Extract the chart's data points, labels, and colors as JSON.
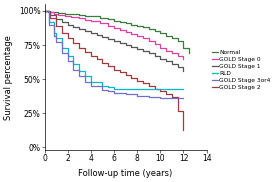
{
  "title": "",
  "xlabel": "Follow-up time (years)",
  "ylabel": "Survival percentage",
  "xlim": [
    0,
    14
  ],
  "ylim": [
    -2,
    105
  ],
  "yticks": [
    0,
    25,
    50,
    75,
    100
  ],
  "ytick_labels": [
    "0%",
    "25%",
    "50%",
    "75%",
    "100%"
  ],
  "xticks": [
    0,
    2,
    4,
    6,
    8,
    10,
    12,
    14
  ],
  "background_color": "#ffffff",
  "series": [
    {
      "label": "Normal",
      "color": "#3a7d3a",
      "lw": 0.9,
      "x": [
        0,
        0.3,
        0.8,
        1.2,
        1.8,
        2.3,
        3.0,
        3.5,
        4.0,
        4.8,
        5.5,
        6.0,
        6.5,
        7.0,
        7.5,
        8.0,
        8.5,
        9.0,
        9.5,
        10.0,
        10.5,
        11.0,
        11.5,
        12.0,
        12.5
      ],
      "y": [
        100,
        99.5,
        99,
        98.5,
        98,
        97.5,
        97,
        96.5,
        96,
        95,
        94,
        93,
        92,
        91,
        90,
        89,
        88,
        87,
        85.5,
        84,
        82,
        80,
        78,
        73,
        69
      ]
    },
    {
      "label": "GOLD Stage 0",
      "color": "#e040a0",
      "lw": 0.9,
      "x": [
        0,
        0.3,
        0.8,
        1.2,
        1.8,
        2.3,
        3.0,
        3.5,
        4.0,
        4.8,
        5.5,
        6.0,
        6.5,
        7.0,
        7.5,
        8.0,
        8.5,
        9.0,
        9.5,
        10.0,
        10.5,
        11.0,
        11.5,
        12.0
      ],
      "y": [
        100,
        99,
        98,
        97,
        96.5,
        95.5,
        94.5,
        93.5,
        92.5,
        91,
        89,
        87.5,
        86,
        84.5,
        83,
        81.5,
        80,
        78,
        76,
        73,
        71,
        69,
        67,
        65
      ]
    },
    {
      "label": "GOLD Stage 1",
      "color": "#555555",
      "lw": 0.9,
      "x": [
        0,
        0.5,
        1.0,
        1.5,
        2.0,
        2.5,
        3.0,
        3.5,
        4.0,
        4.5,
        5.0,
        5.5,
        6.0,
        6.5,
        7.0,
        7.5,
        8.0,
        8.5,
        9.0,
        9.5,
        10.0,
        10.5,
        11.0,
        11.5,
        12.0
      ],
      "y": [
        100,
        97,
        94,
        92,
        90,
        88.5,
        87,
        85.5,
        84,
        82.5,
        81,
        79.5,
        78,
        76.5,
        75,
        73.5,
        72,
        70.5,
        69,
        67,
        65,
        63,
        61,
        59,
        56
      ]
    },
    {
      "label": "GOLD Stage 2",
      "color": "#9e3a3a",
      "lw": 0.9,
      "x": [
        0,
        0.5,
        1.0,
        1.5,
        2.0,
        2.5,
        3.0,
        3.5,
        4.0,
        4.5,
        5.0,
        5.5,
        6.0,
        6.5,
        7.0,
        7.5,
        8.0,
        8.5,
        9.0,
        9.5,
        10.0,
        10.5,
        11.0,
        11.5,
        12.0
      ],
      "y": [
        100,
        95,
        89,
        84,
        80,
        76.5,
        73,
        70,
        67,
        64.5,
        62,
        59.5,
        57,
        55,
        53,
        51,
        49,
        47,
        45,
        43,
        41,
        39,
        37,
        27,
        13
      ]
    },
    {
      "label": "RLD",
      "color": "#00b8c8",
      "lw": 0.9,
      "x": [
        0,
        0.4,
        0.8,
        1.0,
        1.5,
        2.0,
        2.5,
        3.0,
        3.5,
        4.0,
        5.0,
        5.5,
        6.0,
        7.0,
        8.0,
        9.0,
        10.0,
        11.0,
        12.0
      ],
      "y": [
        100,
        92,
        84,
        80,
        73,
        67,
        61,
        56,
        52,
        48,
        45,
        44,
        43,
        43,
        43,
        43,
        43,
        43,
        43
      ]
    },
    {
      "label": "GOLD Stage 3or4",
      "color": "#7070cc",
      "lw": 0.9,
      "x": [
        0,
        0.4,
        0.8,
        1.0,
        1.5,
        2.0,
        2.5,
        3.0,
        3.5,
        4.0,
        5.0,
        5.5,
        6.0,
        7.0,
        8.0,
        9.0,
        10.0,
        11.0,
        12.0
      ],
      "y": [
        100,
        90,
        82,
        77,
        69,
        63,
        57,
        52,
        48,
        45,
        42,
        41,
        40,
        39,
        38,
        37,
        36,
        36,
        36
      ]
    }
  ],
  "legend_entries": [
    {
      "label": "Normal",
      "color": "#3a7d3a"
    },
    {
      "label": "GOLD Stage 0",
      "color": "#e040a0"
    },
    {
      "label": "GOLD Stage 1",
      "color": "#555555"
    },
    {
      "label": "RLD",
      "color": "#00b8c8"
    },
    {
      "label": "GOLD Stage 3or4",
      "color": "#7070cc"
    },
    {
      "label": "GOLD Stage 2",
      "color": "#9e3a3a"
    }
  ],
  "legend_fontsize": 4.2,
  "axis_fontsize": 5.5,
  "label_fontsize": 6.0
}
